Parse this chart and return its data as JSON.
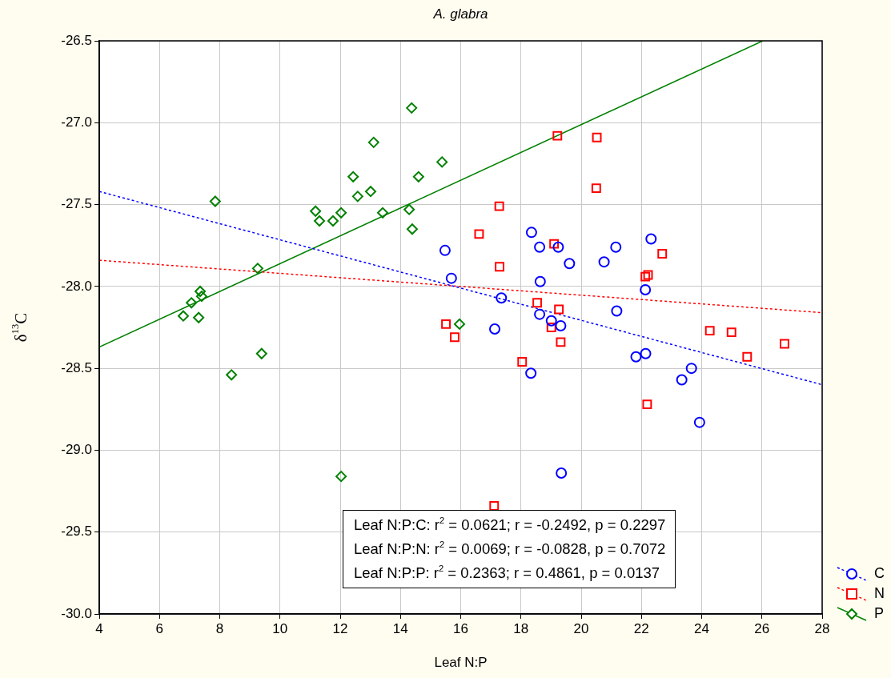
{
  "chart_data": {
    "type": "scatter",
    "title": "A. glabra",
    "xlabel": "Leaf N:P",
    "ylabel": "δ$^{13}$C",
    "xlim": [
      4,
      28
    ],
    "xticks": [
      4,
      6,
      8,
      10,
      12,
      14,
      16,
      18,
      20,
      22,
      24,
      26,
      28
    ],
    "ylim": [
      -30,
      -26.5
    ],
    "yticks": [
      {
        "value": -30,
        "label": "-30.0"
      },
      -29.5,
      {
        "value": -29,
        "label": "-29.0"
      },
      -28.5,
      {
        "value": -28,
        "label": "-28.0"
      },
      -27.5,
      {
        "value": -27,
        "label": "-27.0"
      },
      -26.5
    ],
    "grid": true,
    "legend": "bottom right",
    "series": [
      {
        "name": "C",
        "color": "#0000ff",
        "marker": "circle",
        "x": [
          15.48,
          15.69,
          17.35,
          17.13,
          18.35,
          18.62,
          19.24,
          19.61,
          18.64,
          18.62,
          19.01,
          19.32,
          18.33,
          20.76,
          21.15,
          21.18,
          22.32,
          22.13,
          21.82,
          22.14,
          23.66,
          23.34,
          23.93,
          19.34
        ],
        "values": [
          -27.78,
          -27.95,
          -28.07,
          -28.26,
          -27.67,
          -27.76,
          -27.76,
          -27.86,
          -27.97,
          -28.17,
          -28.21,
          -28.24,
          -28.53,
          -27.85,
          -27.76,
          -28.15,
          -27.71,
          -28.02,
          -28.43,
          -28.41,
          -28.5,
          -28.57,
          -28.83,
          -29.14
        ]
      },
      {
        "name": "N",
        "color": "#ff0000",
        "marker": "square",
        "x": [
          19.21,
          20.52,
          20.5,
          17.28,
          16.61,
          19.1,
          17.29,
          22.69,
          22.22,
          22.13,
          18.54,
          19.26,
          15.51,
          15.8,
          19.01,
          19.32,
          18.04,
          24.27,
          24.99,
          25.51,
          26.75,
          22.19,
          17.11
        ],
        "values": [
          -27.08,
          -27.09,
          -27.4,
          -27.51,
          -27.68,
          -27.74,
          -27.88,
          -27.8,
          -27.93,
          -27.94,
          -28.1,
          -28.14,
          -28.23,
          -28.31,
          -28.25,
          -28.34,
          -28.46,
          -28.27,
          -28.28,
          -28.43,
          -28.35,
          -28.72,
          -29.34
        ]
      },
      {
        "name": "P",
        "color": "#008000",
        "marker": "diamond",
        "x": [
          6.79,
          7.06,
          7.35,
          7.4,
          7.3,
          7.85,
          8.39,
          9.26,
          9.39,
          11.18,
          11.31,
          11.76,
          12.03,
          12.03,
          12.43,
          12.58,
          13.01,
          13.11,
          13.41,
          14.29,
          14.37,
          14.39,
          14.6,
          15.38,
          15.96
        ],
        "values": [
          -28.18,
          -28.1,
          -28.03,
          -28.06,
          -28.19,
          -27.48,
          -28.54,
          -27.89,
          -28.41,
          -27.54,
          -27.6,
          -27.6,
          -27.55,
          -29.16,
          -27.33,
          -27.45,
          -27.42,
          -27.12,
          -27.55,
          -27.53,
          -26.91,
          -27.65,
          -27.33,
          -27.24,
          -28.23
        ]
      },
      {
        "type": "line",
        "color": "#0000ff",
        "line_style": "dotted",
        "x": [
          4,
          28
        ],
        "values": [
          -27.42,
          -28.6
        ]
      },
      {
        "type": "line",
        "color": "#ff0000",
        "line_style": "dotted",
        "x": [
          4,
          28
        ],
        "values": [
          -27.84,
          -28.16
        ]
      },
      {
        "type": "line",
        "color": "#008000",
        "line_style": "solid",
        "x": [
          4,
          26.03
        ],
        "values": [
          -28.37,
          -26.5
        ]
      }
    ],
    "annotations": [
      "Leaf N:P:C:  r$^{2}$ = 0.0621;  r = -0.2492, p = 0.2297",
      "Leaf N:P:N:  r$^{2}$ = 0.0069;  r = -0.0828, p = 0.7072",
      "Leaf N:P:P:  r$^{2}$ = 0.2363;  r = 0.4861, p = 0.0137"
    ]
  }
}
